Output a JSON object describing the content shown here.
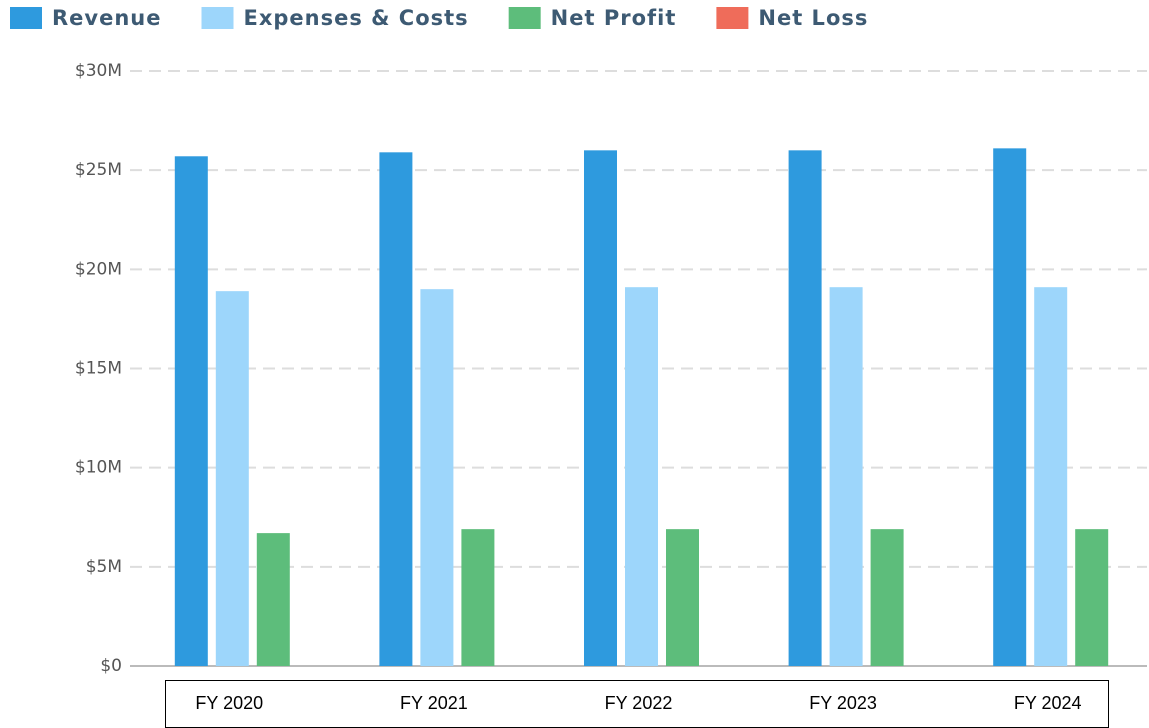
{
  "chart_data": {
    "type": "bar",
    "categories": [
      "FY 2020",
      "FY 2021",
      "FY 2022",
      "FY 2023",
      "FY 2024"
    ],
    "series": [
      {
        "name": "Revenue",
        "color": "#2e9ade",
        "values": [
          25.7,
          25.9,
          26.0,
          26.0,
          26.1
        ]
      },
      {
        "name": "Expenses & Costs",
        "color": "#9dd6fb",
        "values": [
          18.9,
          19.0,
          19.1,
          19.1,
          19.1
        ]
      },
      {
        "name": "Net Profit",
        "color": "#5dbd7b",
        "values": [
          6.7,
          6.9,
          6.9,
          6.9,
          6.9
        ]
      },
      {
        "name": "Net Loss",
        "color": "#ef6c5a",
        "values": [
          null,
          null,
          null,
          null,
          null
        ]
      }
    ],
    "ylim": [
      0,
      30
    ],
    "yticks": [
      {
        "value": 0,
        "label": "$0"
      },
      {
        "value": 5,
        "label": "$5M"
      },
      {
        "value": 10,
        "label": "$10M"
      },
      {
        "value": 15,
        "label": "$15M"
      },
      {
        "value": 20,
        "label": "$20M"
      },
      {
        "value": 25,
        "label": "$25M"
      },
      {
        "value": 30,
        "label": "$30M"
      }
    ],
    "grid": true,
    "legend": "top"
  }
}
